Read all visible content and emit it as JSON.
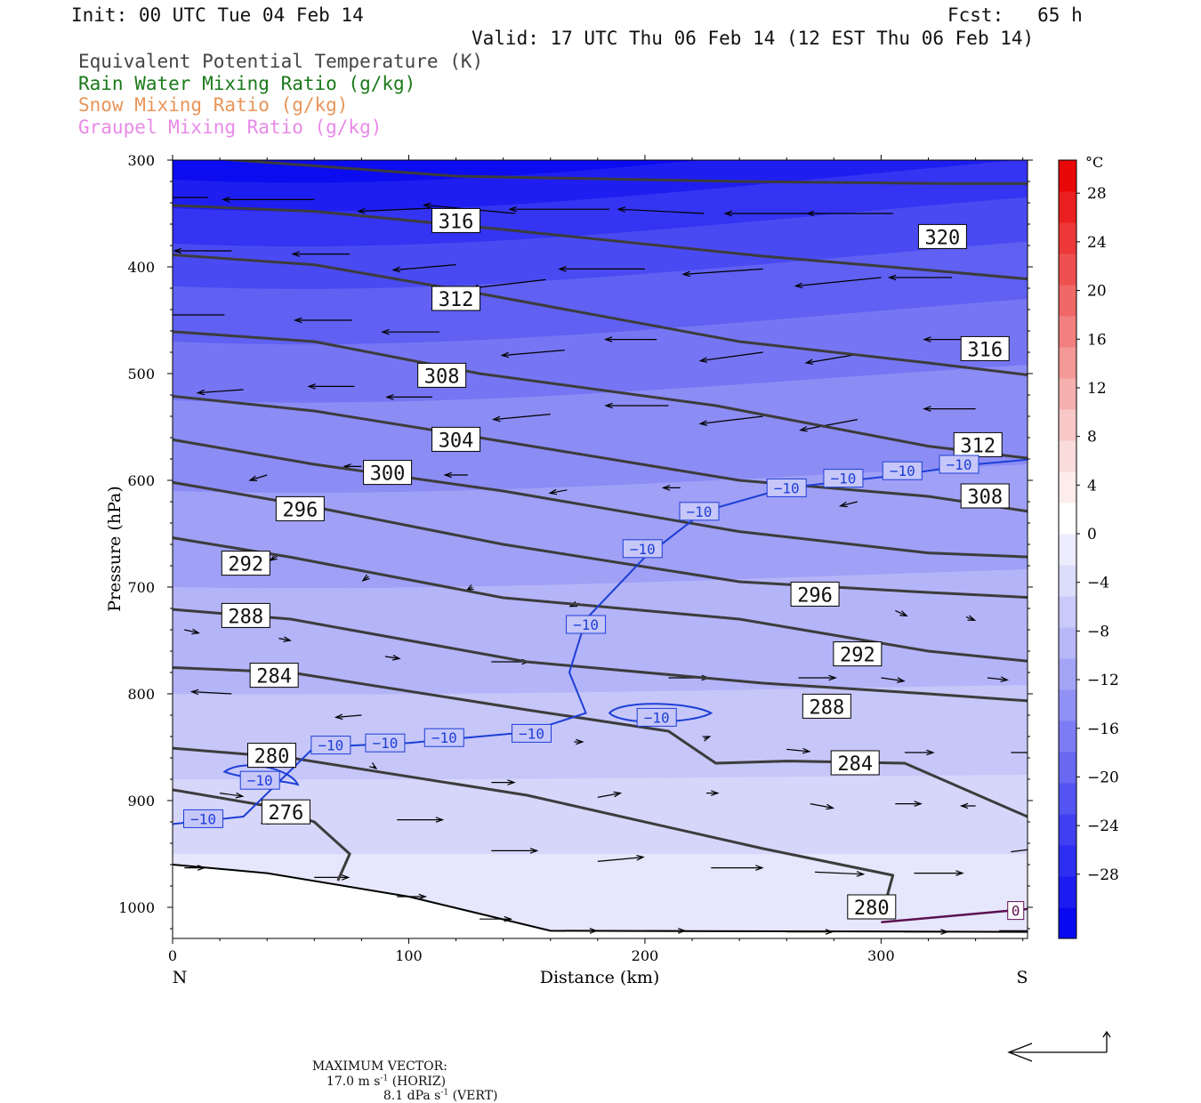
{
  "header": {
    "init": "Init: 00 UTC Tue 04 Feb 14",
    "fcst": "Fcst:   65 h",
    "valid": "Valid: 17 UTC Thu 06 Feb 14 (12 EST Thu 06 Feb 14)"
  },
  "legend": [
    {
      "label": "Equivalent Potential Temperature (K)",
      "color": "#444444"
    },
    {
      "label": "Rain Water Mixing Ratio (g/kg)",
      "color": "#1a7a1a"
    },
    {
      "label": "Snow Mixing Ratio (g/kg)",
      "color": "#e8955a"
    },
    {
      "label": "Graupel Mixing Ratio (g/kg)",
      "color": "#e88ae8"
    }
  ],
  "chart_data": {
    "type": "cross-section",
    "xlabel": "Distance (km)",
    "ylabel": "Pressure (hPa)",
    "x_ticks": [
      0,
      100,
      200,
      300
    ],
    "x_range": [
      0,
      362
    ],
    "y_ticks": [
      300,
      400,
      500,
      600,
      700,
      800,
      900,
      1000
    ],
    "y_range": [
      300,
      1030
    ],
    "left_end": "N",
    "right_end": "S",
    "colorbar": {
      "unit": "°C",
      "tick_labels": [
        "28",
        "24",
        "20",
        "16",
        "12",
        "8",
        "4",
        "0",
        "−4",
        "−8",
        "−12",
        "−16",
        "−20",
        "−24",
        "−28"
      ],
      "range": [
        -32,
        32
      ],
      "step": 4,
      "colors": [
        "#0a0af0",
        "#1c1cf0",
        "#2e2ef2",
        "#4040f2",
        "#5454f2",
        "#6868f2",
        "#7c7cf4",
        "#9090f5",
        "#a4a4f7",
        "#b8b8f8",
        "#cacafa",
        "#dcdcfb",
        "#ececfd",
        "#ffffff",
        "#fcecec",
        "#fadcdc",
        "#f8c8c8",
        "#f6b0b0",
        "#f49898",
        "#f28080",
        "#f06868",
        "#ee5050",
        "#ec3838",
        "#ea2020",
        "#e80808"
      ]
    },
    "theta_e_labels": [
      {
        "value": "316",
        "x": 120,
        "p": 357
      },
      {
        "value": "320",
        "x": 326,
        "p": 372
      },
      {
        "value": "312",
        "x": 120,
        "p": 430
      },
      {
        "value": "316",
        "x": 344,
        "p": 477
      },
      {
        "value": "308",
        "x": 114,
        "p": 502
      },
      {
        "value": "304",
        "x": 120,
        "p": 562
      },
      {
        "value": "312",
        "x": 341,
        "p": 567
      },
      {
        "value": "300",
        "x": 91,
        "p": 593
      },
      {
        "value": "308",
        "x": 344,
        "p": 615
      },
      {
        "value": "296",
        "x": 54,
        "p": 627
      },
      {
        "value": "292",
        "x": 31,
        "p": 678
      },
      {
        "value": "296",
        "x": 272,
        "p": 707
      },
      {
        "value": "288",
        "x": 31,
        "p": 727
      },
      {
        "value": "292",
        "x": 290,
        "p": 763
      },
      {
        "value": "284",
        "x": 43,
        "p": 783
      },
      {
        "value": "288",
        "x": 277,
        "p": 812
      },
      {
        "value": "280",
        "x": 42,
        "p": 858
      },
      {
        "value": "284",
        "x": 289,
        "p": 865
      },
      {
        "value": "276",
        "x": 48,
        "p": 911
      },
      {
        "value": "280",
        "x": 296,
        "p": 1000
      }
    ],
    "temperature_labels": [
      {
        "value": "−10",
        "x": 13,
        "p": 917
      },
      {
        "value": "−10",
        "x": 37,
        "p": 881
      },
      {
        "value": "−10",
        "x": 67,
        "p": 848
      },
      {
        "value": "−10",
        "x": 90,
        "p": 846
      },
      {
        "value": "−10",
        "x": 115,
        "p": 841
      },
      {
        "value": "−10",
        "x": 152,
        "p": 837
      },
      {
        "value": "−10",
        "x": 175,
        "p": 735
      },
      {
        "value": "−10",
        "x": 199,
        "p": 664
      },
      {
        "value": "−10",
        "x": 223,
        "p": 629
      },
      {
        "value": "−10",
        "x": 260,
        "p": 607
      },
      {
        "value": "−10",
        "x": 284,
        "p": 598
      },
      {
        "value": "−10",
        "x": 309,
        "p": 591
      },
      {
        "value": "−10",
        "x": 333,
        "p": 585
      },
      {
        "value": "−10",
        "x": 205,
        "p": 822
      }
    ],
    "zero_label": {
      "value": "0",
      "x": 357,
      "p": 1003
    }
  },
  "footer": {
    "max_vector": "MAXIMUM VECTOR:",
    "horiz_value": "17.0 m s",
    "horiz_exp": "-1",
    "horiz_tag": "(HORIZ)",
    "vert_value": "8.1 dPa s",
    "vert_exp": "-1",
    "vert_tag": "(VERT)"
  }
}
